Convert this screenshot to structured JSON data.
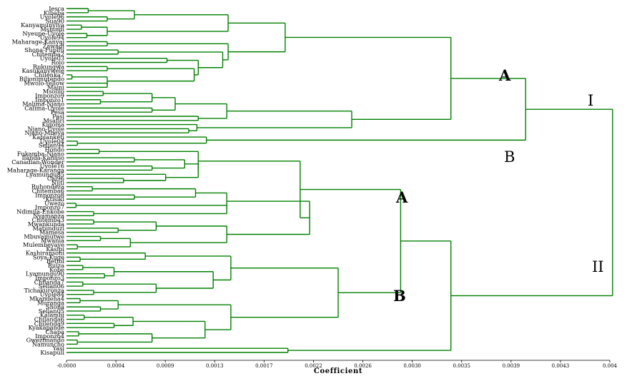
{
  "chart_data": {
    "type": "dendrogram",
    "xlabel": "Coefficient",
    "xlim": [
      0,
      0.004
    ],
    "x_ticks": [
      "-0.0000",
      "0.0004",
      "0.0009",
      "0.0013",
      "0.0017",
      "0.0022",
      "0.0026",
      "0.0030",
      "0.0035",
      "0.0039",
      "0.0043",
      "0.004"
    ],
    "leaves": [
      "Iesca",
      "Kibaba",
      "Uyole96",
      "Sua90",
      "Kanyamunyiya",
      "Mshindi",
      "Nyeupe-Uyole",
      "Uyole94",
      "Maharage-Kanyaj",
      "Zawadi",
      "Shona-Fupifu",
      "Chitemba2",
      "Uyole03",
      "Rojo",
      "Rukungwa",
      "Kasukanywele",
      "Chilenka7",
      "Bilionimutendo",
      "Mwolo-Yellow",
      "Maini",
      "Msolilo",
      "Imponzo9",
      "Imponzo1",
      "Malima-Njano",
      "Calima-Uyole",
      "Pesa",
      "Pasi",
      "Msafiri",
      "Kigoma",
      "Njano-Uyole",
      "Njano-Mbeya",
      "Kablanketi",
      "Uyole04",
      "Selian94",
      "Hondo",
      "Fukamba-Njano",
      "Ilanda-Kalinso",
      "Canadian-Wonder",
      "Uyole16",
      "Maharage-Karanga",
      "Lyamungu85",
      "Cal96",
      "Njiti",
      "Ruhondeza",
      "Chitemba6",
      "Imponzo8",
      "Ktisiki",
      "Uwezo",
      "Imponzo7",
      "Ndimila-Enkobe",
      "Nyamanza",
      "Chitemba3",
      "Mwankunda",
      "Matunduzi",
      "Mamesa",
      "Mbuvamutwe",
      "Mwania",
      "Mulembeyaye",
      "Kasipi",
      "Kashiransoni",
      "Soya-Kuge",
      "Bettol",
      "Ruiza",
      "Kobe",
      "Lyamungu90",
      "Imponzo3",
      "Chilanda7",
      "Selian06",
      "Tichakuronza",
      "Uyole84",
      "Mkandeha4",
      "Muranga",
      "Shona",
      "Selian05",
      "Kalambi",
      "Chilanda6",
      "Chilenda9",
      "Kyakapande",
      "Chapa",
      "Imponzo4",
      "Gwezimando",
      "Namuncho",
      "Yasi",
      "Kisapuli"
    ],
    "clusters": {
      "top": "I",
      "bottom": "II",
      "A1": "A",
      "B1": "B",
      "A2": "A",
      "B2": "B"
    }
  }
}
